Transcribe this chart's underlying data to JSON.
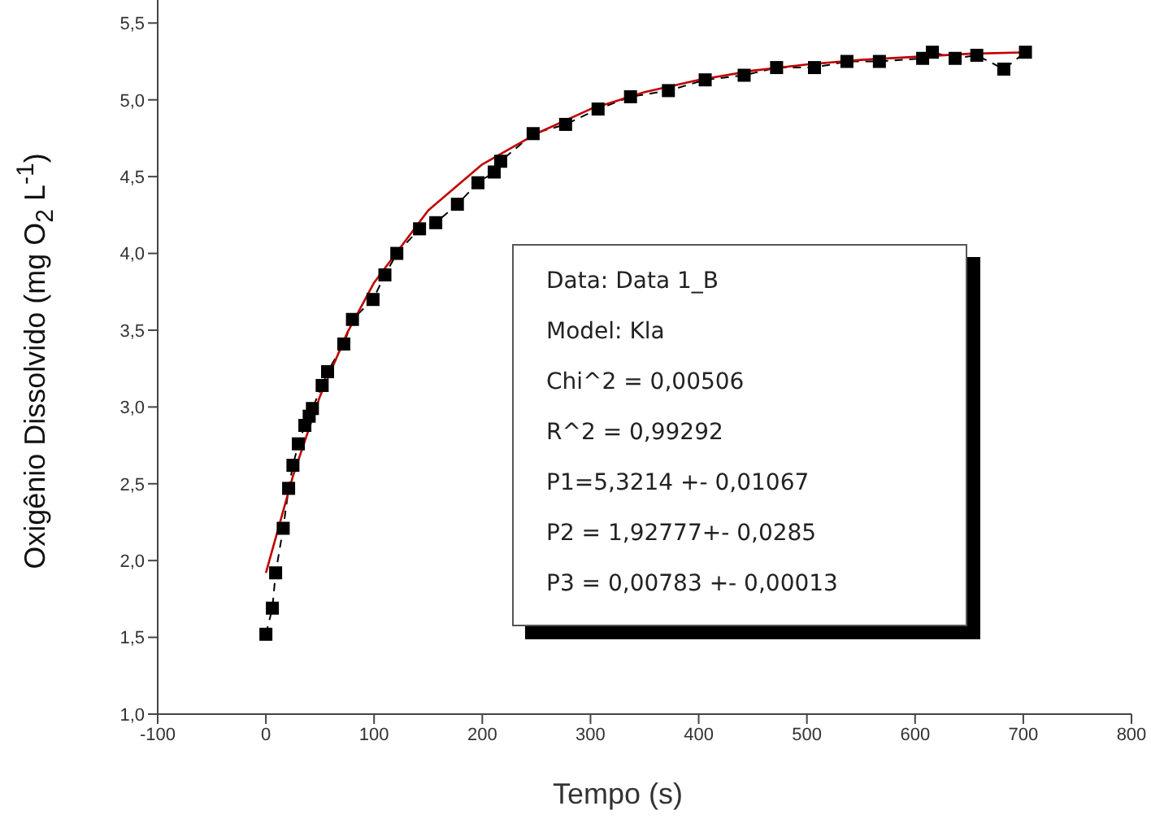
{
  "chart_data": {
    "type": "line",
    "xlabel": "Tempo (s)",
    "ylabel": "Oxigênio Dissolvido (mg O$_{2}$ L$^{-1}$)",
    "xlim": [
      -100,
      800
    ],
    "xticks": [
      -100,
      0,
      100,
      200,
      300,
      400,
      500,
      600,
      700,
      800
    ],
    "ylim": [
      1,
      5.65
    ],
    "yticks": [
      {
        "value": 1,
        "label": "1,0"
      },
      {
        "value": 1.5,
        "label": "1,5"
      },
      {
        "value": 2,
        "label": "2,0"
      },
      {
        "value": 2.5,
        "label": "2,5"
      },
      {
        "value": 3,
        "label": "3,0"
      },
      {
        "value": 3.5,
        "label": "3,5"
      },
      {
        "value": 4,
        "label": "4,0"
      },
      {
        "value": 4.5,
        "label": "4,5"
      },
      {
        "value": 5,
        "label": "5,0"
      },
      {
        "value": 5.5,
        "label": "5,5"
      }
    ],
    "grid": false,
    "series": [
      {
        "color": "#000000",
        "marker": "square",
        "line_style": "dashed",
        "x": [
          0,
          6,
          9,
          16,
          21,
          25,
          30,
          36,
          40,
          43,
          52,
          57,
          72,
          80,
          99,
          110,
          121,
          142,
          157,
          177,
          196,
          211,
          217,
          247,
          277,
          307,
          337,
          372,
          406,
          442,
          472,
          507,
          537,
          567,
          607,
          616,
          637,
          657,
          682,
          702
        ],
        "values": [
          1.52,
          1.69,
          1.92,
          2.21,
          2.47,
          2.62,
          2.76,
          2.88,
          2.94,
          2.99,
          3.14,
          3.23,
          3.41,
          3.57,
          3.7,
          3.86,
          4.0,
          4.16,
          4.2,
          4.32,
          4.46,
          4.53,
          4.6,
          4.78,
          4.84,
          4.94,
          5.02,
          5.06,
          5.13,
          5.16,
          5.21,
          5.21,
          5.25,
          5.25,
          5.27,
          5.31,
          5.27,
          5.29,
          5.2,
          5.31
        ]
      },
      {
        "color": "#c00000",
        "marker": "none",
        "line_style": "solid",
        "x": [
          0,
          25,
          50,
          75,
          100,
          150,
          200,
          250,
          300,
          350,
          400,
          450,
          500,
          550,
          600,
          650,
          705
        ],
        "values": [
          1.92,
          2.55,
          3.07,
          3.48,
          3.81,
          4.28,
          4.58,
          4.78,
          4.94,
          5.05,
          5.13,
          5.19,
          5.23,
          5.26,
          5.28,
          5.3,
          5.31
        ]
      }
    ],
    "annotations": [
      "Data: Data 1_B",
      "Model: Kla",
      "Chi^2 = 0,00506",
      "R^2 = 0,99292",
      "P1=5,3214 +- 0,01067",
      "P2 = 1,92777+- 0,0285",
      "P3 = 0,00783 +- 0,00013"
    ]
  }
}
